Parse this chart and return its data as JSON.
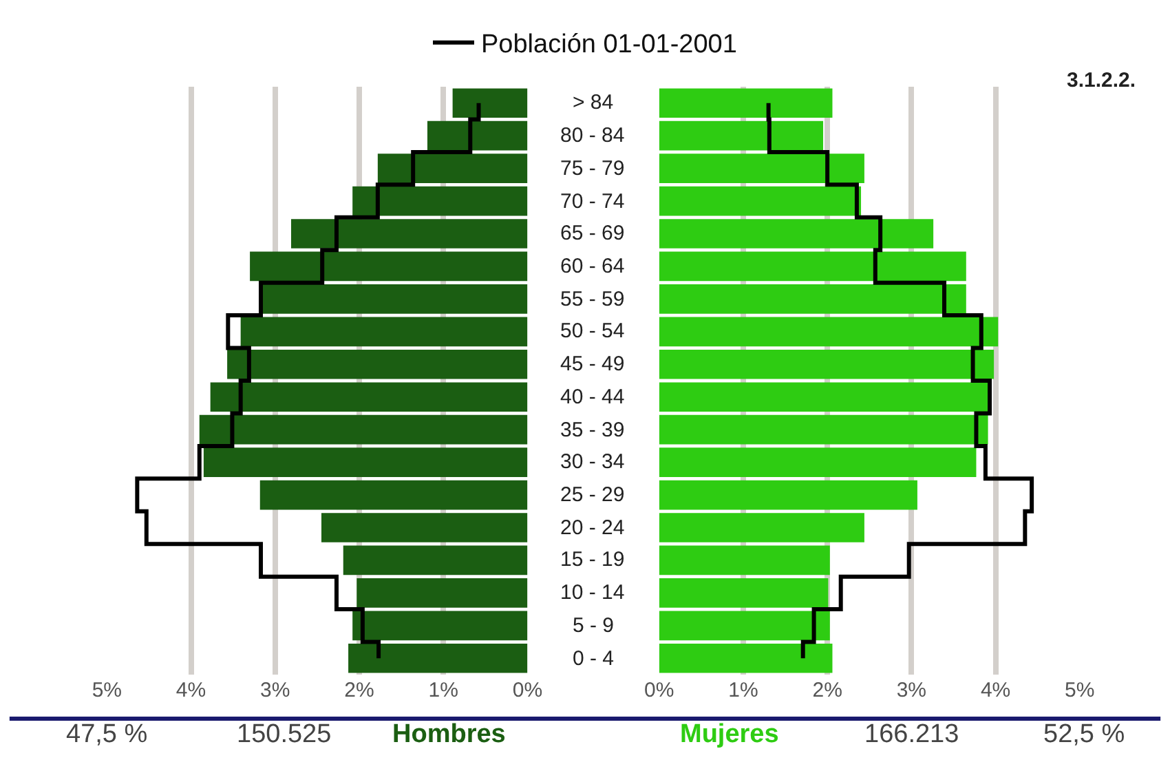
{
  "chart_data": [
    {
      "type": "bar",
      "orientation": "horizontal",
      "xlabel": "Hombres",
      "annotations": [
        "47,5 %",
        "150.525"
      ],
      "categories": [
        "> 84",
        "80 - 84",
        "75 - 79",
        "70 - 74",
        "65 - 69",
        "60 - 64",
        "55 - 59",
        "50 - 54",
        "45 - 49",
        "40 - 44",
        "35 - 39",
        "30 - 34",
        "25 - 29",
        "20 - 24",
        "15 - 19",
        "10 - 14",
        "5 - 9",
        "0 - 4"
      ],
      "series": [
        {
          "color": "#1b5e12",
          "values": [
            0.89,
            1.19,
            1.78,
            2.08,
            2.81,
            3.3,
            3.17,
            3.41,
            3.57,
            3.77,
            3.9,
            3.85,
            3.18,
            2.45,
            2.19,
            2.03,
            2.08,
            2.13
          ]
        },
        {
          "type": "step",
          "name": "Población 01-01-2001",
          "color": "#000000",
          "values": [
            0.58,
            0.68,
            1.36,
            1.78,
            2.27,
            2.44,
            3.17,
            3.56,
            3.31,
            3.41,
            3.51,
            3.9,
            4.64,
            4.53,
            3.17,
            2.27,
            1.96,
            1.77
          ]
        }
      ],
      "xlim": [
        5,
        0
      ],
      "xticks": [
        {
          "value": 5,
          "label": "5%"
        },
        {
          "value": 4,
          "label": "4%"
        },
        {
          "value": 3,
          "label": "3%"
        },
        {
          "value": 2,
          "label": "2%"
        },
        {
          "value": 1,
          "label": "1%"
        },
        {
          "value": 0,
          "label": "0%"
        }
      ],
      "grid": "x",
      "legend": "top"
    },
    {
      "type": "bar",
      "orientation": "horizontal",
      "xlabel": "Mujeres",
      "annotations": [
        "166.213",
        "52,5 %",
        "3.1.2.2."
      ],
      "tick_labels": "x",
      "categories": [
        "> 84",
        "80 - 84",
        "75 - 79",
        "70 - 74",
        "65 - 69",
        "60 - 64",
        "55 - 59",
        "50 - 54",
        "45 - 49",
        "40 - 44",
        "35 - 39",
        "30 - 34",
        "25 - 29",
        "20 - 24",
        "15 - 19",
        "10 - 14",
        "5 - 9",
        "0 - 4"
      ],
      "series": [
        {
          "color": "#2ecc12",
          "values": [
            2.06,
            1.95,
            2.44,
            2.4,
            3.26,
            3.65,
            3.65,
            4.03,
            3.98,
            3.93,
            3.91,
            3.77,
            3.07,
            2.44,
            2.03,
            2.01,
            2.03,
            2.06
          ]
        },
        {
          "type": "step",
          "name": "Población 01-01-2001",
          "color": "#000000",
          "values": [
            1.3,
            1.31,
            2.0,
            2.35,
            2.63,
            2.57,
            3.39,
            3.83,
            3.73,
            3.93,
            3.77,
            3.88,
            4.43,
            4.35,
            2.97,
            2.16,
            1.84,
            1.71
          ]
        }
      ],
      "xlim": [
        0,
        5
      ],
      "xticks": [
        {
          "value": 0,
          "label": "0%"
        },
        {
          "value": 1,
          "label": "1%"
        },
        {
          "value": 2,
          "label": "2%"
        },
        {
          "value": 3,
          "label": "3%"
        },
        {
          "value": 4,
          "label": "4%"
        },
        {
          "value": 5,
          "label": "5%"
        }
      ],
      "grid": "x"
    }
  ]
}
